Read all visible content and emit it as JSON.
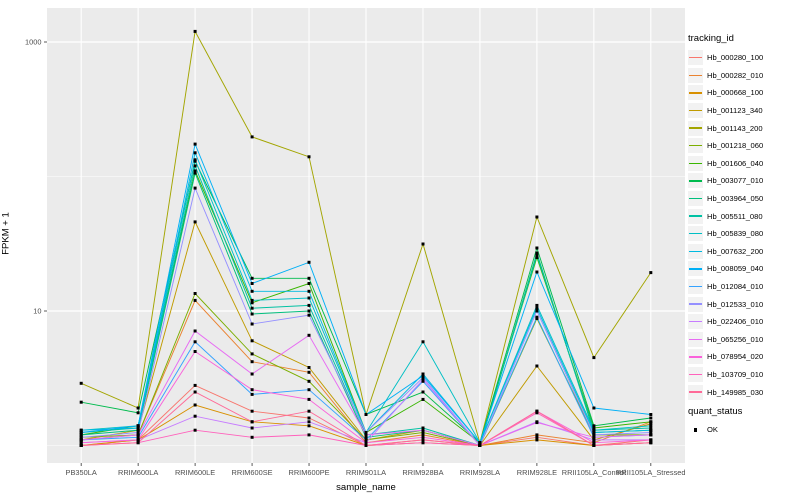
{
  "figure": {
    "background": "#FFFFFF",
    "panel_background": "#EBEBEB",
    "gridline_color": "#FFFFFF",
    "axis_tick_color": "#333333",
    "tick_label_color": "#4D4D4D",
    "point_color": "#000000"
  },
  "chart_data": {
    "type": "line",
    "title": "",
    "xlabel": "sample_name",
    "ylabel": "FPKM + 1",
    "y_scale": "log10",
    "ylim": [
      0.74,
      1800
    ],
    "grid": true,
    "legend_position": "right",
    "y_axis_ticks": [
      {
        "label": "1000",
        "value": 1000
      },
      {
        "label": "10",
        "value": 10
      }
    ],
    "y_minor_gridline_values": [
      100,
      1
    ],
    "categories": [
      "PB350LA",
      "RRIM600LA",
      "RRIM600LE",
      "RRIM600SE",
      "RRIM600PE",
      "RRIM901LA",
      "RRIM928BA",
      "RRIM928LA",
      "RRIM928LE",
      "RRII105LA_Control",
      "RRII105LA_Stressed"
    ],
    "point_shape": "filled-square",
    "series": [
      {
        "name": "Hb_000280_100",
        "color": "#F8766D",
        "values": [
          1.0,
          1.1,
          2.8,
          1.8,
          1.6,
          1.0,
          1.1,
          1.0,
          1.15,
          1.0,
          1.1
        ]
      },
      {
        "name": "Hb_000282_010",
        "color": "#EA8331",
        "values": [
          1.1,
          1.2,
          12,
          4.2,
          3.5,
          1.05,
          1.2,
          1.0,
          1.2,
          1.05,
          1.5
        ]
      },
      {
        "name": "Hb_000668_100",
        "color": "#D89000",
        "values": [
          1.0,
          1.1,
          2.0,
          1.5,
          1.4,
          1.0,
          1.05,
          1.0,
          1.1,
          1.0,
          1.05
        ]
      },
      {
        "name": "Hb_001123_340",
        "color": "#C09B00",
        "values": [
          1.1,
          1.3,
          46,
          6.0,
          3.8,
          1.1,
          1.3,
          1.0,
          3.9,
          1.1,
          1.45
        ]
      },
      {
        "name": "Hb_001143_200",
        "color": "#A3A500",
        "values": [
          2.9,
          1.9,
          1200,
          197,
          140,
          1.7,
          31.5,
          1.05,
          50,
          4.5,
          19.3
        ]
      },
      {
        "name": "Hb_001218_060",
        "color": "#7CAE00",
        "values": [
          1.15,
          1.2,
          13.5,
          4.8,
          3.0,
          1.1,
          1.25,
          1.0,
          8.8,
          1.2,
          1.2
        ]
      },
      {
        "name": "Hb_001606_040",
        "color": "#39B600",
        "values": [
          1.2,
          1.4,
          110,
          11.5,
          16,
          1.25,
          2.2,
          1.05,
          25,
          1.35,
          1.5
        ]
      },
      {
        "name": "Hb_003077_010",
        "color": "#00BB4E",
        "values": [
          2.1,
          1.75,
          130,
          17.5,
          17.5,
          1.7,
          2.5,
          1.05,
          29.4,
          1.4,
          1.6
        ]
      },
      {
        "name": "Hb_003964_050",
        "color": "#00BF7D",
        "values": [
          1.2,
          1.3,
          106,
          9.5,
          10,
          1.15,
          1.3,
          1.0,
          27,
          1.25,
          1.3
        ]
      },
      {
        "name": "Hb_005511_080",
        "color": "#00C1A3",
        "values": [
          1.25,
          1.35,
          120,
          10.5,
          11,
          1.2,
          1.35,
          1.0,
          26,
          1.3,
          1.35
        ]
      },
      {
        "name": "Hb_005839_080",
        "color": "#00BFC4",
        "values": [
          1.3,
          1.4,
          133,
          12,
          12.5,
          1.25,
          5.9,
          1.05,
          11,
          1.3,
          1.4
        ]
      },
      {
        "name": "Hb_007632_200",
        "color": "#00BAE0",
        "values": [
          1.3,
          1.35,
          150,
          14,
          14,
          1.25,
          3.4,
          1.05,
          10.5,
          1.25,
          1.3
        ]
      },
      {
        "name": "Hb_008059_040",
        "color": "#00B0F6",
        "values": [
          1.25,
          1.4,
          174,
          16,
          23,
          1.7,
          3.3,
          1.05,
          19.5,
          1.9,
          1.7
        ]
      },
      {
        "name": "Hb_012084_010",
        "color": "#35A2FF",
        "values": [
          1.1,
          1.15,
          5.9,
          2.4,
          2.6,
          1.1,
          3.0,
          1.0,
          9.0,
          1.15,
          1.2
        ]
      },
      {
        "name": "Hb_012533_010",
        "color": "#9590FF",
        "values": [
          1.15,
          1.25,
          82,
          8.0,
          9.3,
          1.25,
          3.2,
          1.0,
          10,
          1.2,
          1.25
        ]
      },
      {
        "name": "Hb_022406_010",
        "color": "#C77CFF",
        "values": [
          1.05,
          1.1,
          1.65,
          1.35,
          1.5,
          1.05,
          3.1,
          1.0,
          1.5,
          1.1,
          1.1
        ]
      },
      {
        "name": "Hb_065256_010",
        "color": "#E76BF3",
        "values": [
          1.1,
          1.2,
          7.1,
          3.4,
          6.6,
          1.2,
          1.3,
          1.0,
          1.48,
          1.15,
          1.2
        ]
      },
      {
        "name": "Hb_078954_020",
        "color": "#FA62DB",
        "values": [
          1.05,
          1.1,
          5.0,
          2.6,
          2.2,
          1.05,
          1.15,
          1.0,
          1.8,
          1.05,
          1.1
        ]
      },
      {
        "name": "Hb_103709_010",
        "color": "#FF62BC",
        "values": [
          1.0,
          1.05,
          1.3,
          1.15,
          1.2,
          1.0,
          1.05,
          1.0,
          1.75,
          1.0,
          1.05
        ]
      },
      {
        "name": "Hb_149985_030",
        "color": "#FF6A98",
        "values": [
          1.0,
          1.05,
          2.5,
          1.5,
          1.8,
          1.0,
          1.1,
          1.0,
          1.8,
          1.0,
          1.05
        ]
      }
    ]
  },
  "legend": {
    "tracking_title": "tracking_id",
    "quant_title": "quant_status",
    "quant_items": [
      {
        "label": "OK",
        "shape": "square",
        "color": "#000000"
      }
    ],
    "key_background": "#F2F2F2"
  }
}
